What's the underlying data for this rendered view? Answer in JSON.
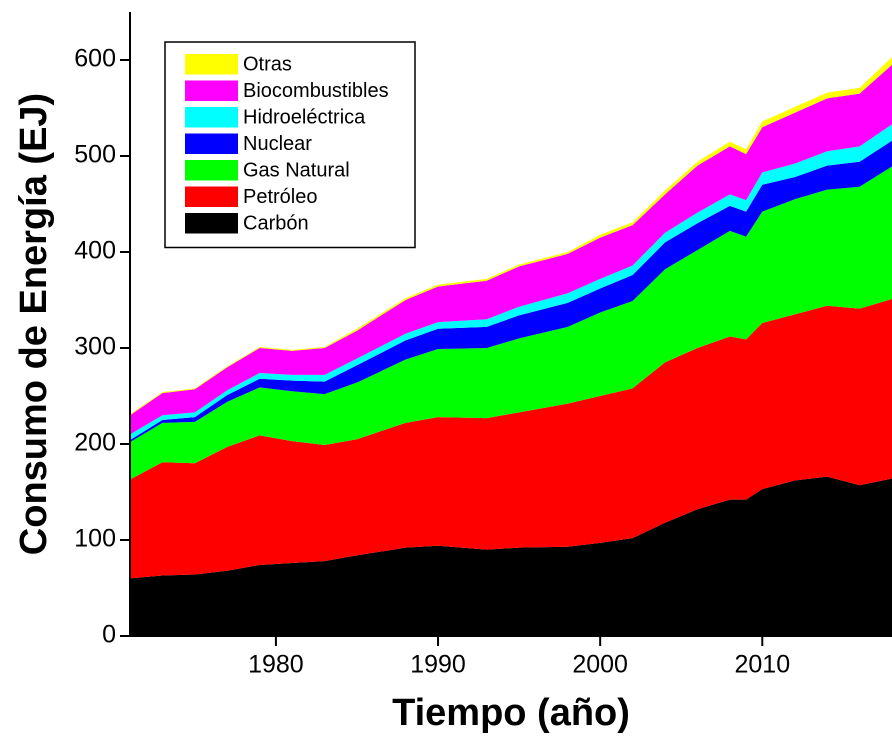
{
  "chart_data": {
    "type": "stacked-area",
    "xlabel": "Tiempo (año)",
    "ylabel": "Consumo de Energía (EJ)",
    "x": [
      1971,
      1973,
      1975,
      1977,
      1979,
      1981,
      1983,
      1985,
      1988,
      1990,
      1993,
      1995,
      1998,
      2000,
      2002,
      2004,
      2006,
      2008,
      2009,
      2010,
      2012,
      2014,
      2016,
      2018
    ],
    "series": [
      {
        "name": "Carbón",
        "color": "#000000",
        "values": [
          60,
          63,
          64,
          68,
          74,
          76,
          78,
          84,
          92,
          94,
          90,
          92,
          93,
          97,
          102,
          118,
          132,
          142,
          142,
          153,
          162,
          166,
          157,
          164
        ]
      },
      {
        "name": "Petróleo",
        "color": "#ff0000",
        "values": [
          103,
          118,
          116,
          129,
          135,
          127,
          121,
          121,
          130,
          134,
          137,
          141,
          149,
          153,
          156,
          167,
          168,
          170,
          167,
          173,
          173,
          178,
          184,
          187
        ]
      },
      {
        "name": "Gas Natural",
        "color": "#00ff00",
        "values": [
          39,
          41,
          43,
          47,
          50,
          52,
          53,
          59,
          66,
          71,
          73,
          77,
          80,
          87,
          91,
          97,
          102,
          110,
          107,
          116,
          120,
          121,
          127,
          138
        ]
      },
      {
        "name": "Nuclear",
        "color": "#0000ff",
        "values": [
          2,
          3,
          5,
          7,
          9,
          11,
          13,
          18,
          20,
          21,
          22,
          24,
          25,
          25,
          27,
          28,
          28,
          26,
          26,
          28,
          23,
          25,
          26,
          27
        ]
      },
      {
        "name": "Hidroeléctrica",
        "color": "#00ffff",
        "values": [
          6,
          5,
          5,
          5,
          6,
          6,
          7,
          7,
          7,
          7,
          8,
          9,
          10,
          10,
          10,
          10,
          11,
          12,
          12,
          13,
          14,
          15,
          16,
          17
        ]
      },
      {
        "name": "Biocombustibles",
        "color": "#ff00ff",
        "values": [
          20,
          23,
          24,
          24,
          26,
          25,
          28,
          29,
          35,
          37,
          40,
          42,
          41,
          43,
          42,
          40,
          49,
          50,
          48,
          47,
          53,
          55,
          55,
          62
        ]
      },
      {
        "name": "Otras",
        "color": "#ffff00",
        "values": [
          1,
          1,
          1,
          1,
          1,
          1,
          1,
          2,
          2,
          2,
          2,
          2,
          2,
          3,
          3,
          4,
          4,
          5,
          5,
          6,
          6,
          6,
          6,
          8
        ]
      }
    ],
    "xlim": [
      1971,
      2018
    ],
    "xticks": [
      1980,
      1990,
      2000,
      2010
    ],
    "ylim": [
      0,
      650
    ],
    "yticks": [
      0,
      100,
      200,
      300,
      400,
      500,
      600
    ],
    "legend": "upper left"
  }
}
